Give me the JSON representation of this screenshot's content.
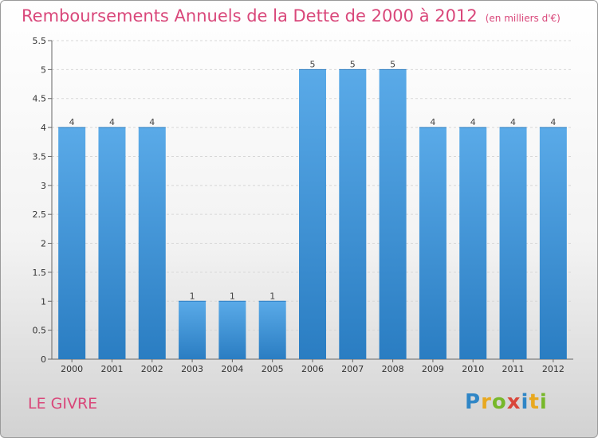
{
  "title": "Remboursements Annuels de la Dette de 2000 à 2012",
  "unit": "(en milliers d'€)",
  "commune": "LE GIVRE",
  "logo": {
    "letters": [
      "P",
      "r",
      "o",
      "x",
      "i",
      "t",
      "i"
    ],
    "colors": [
      "#2f86c6",
      "#e8a81f",
      "#77b82a",
      "#d9463a",
      "#2f86c6",
      "#e8a81f",
      "#77b82a"
    ]
  },
  "colors": {
    "bar_top": "#5aaae8",
    "bar_bottom": "#2a7dc2",
    "title": "#d9477a"
  },
  "chart_data": {
    "type": "bar",
    "categories": [
      "2000",
      "2001",
      "2002",
      "2003",
      "2004",
      "2005",
      "2006",
      "2007",
      "2008",
      "2009",
      "2010",
      "2011",
      "2012"
    ],
    "values": [
      4,
      4,
      4,
      1,
      1,
      1,
      5,
      5,
      5,
      4,
      4,
      4,
      4
    ],
    "data_labels": [
      "4",
      "4",
      "4",
      "1",
      "1",
      "1",
      "5",
      "5",
      "5",
      "4",
      "4",
      "4",
      "4"
    ],
    "ylim": [
      0,
      5.5
    ],
    "yticks": [
      "0",
      "0.5",
      "1",
      "1.5",
      "2",
      "2.5",
      "3",
      "3.5",
      "4",
      "4.5",
      "5",
      "5.5"
    ],
    "grid": true
  }
}
